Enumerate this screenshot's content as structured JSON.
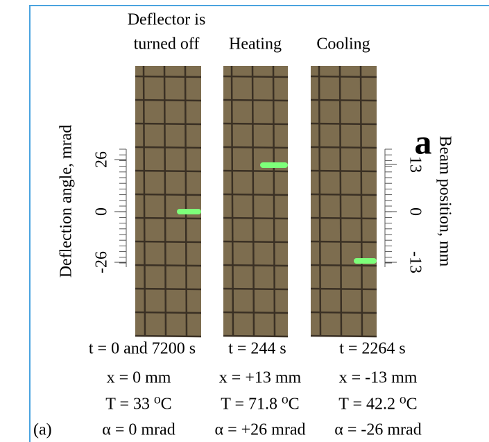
{
  "figure": {
    "panel_letter": "a",
    "caption_label": "(a)",
    "left_axis": {
      "title": "Deflection angle, mrad",
      "ticks": [
        "26",
        "0",
        "-26"
      ]
    },
    "right_axis": {
      "title": "Beam position, mm",
      "ticks": [
        "13",
        "0",
        "-13"
      ]
    },
    "panels": [
      {
        "heading": [
          "Deflector is",
          "turned off"
        ],
        "t": "t = 0 and 7200 s",
        "x": "x = 0 mm",
        "T": "T = 33 ⁰C",
        "alpha": "α = 0 mrad"
      },
      {
        "heading": [
          "Heating"
        ],
        "t": "t = 244 s",
        "x": "x = +13 mm",
        "T": "T = 71.8 ⁰C",
        "alpha": "α = +26 mrad"
      },
      {
        "heading": [
          "Cooling"
        ],
        "t": "t = 2264 s",
        "x": "x = -13 mm",
        "T": "T = 42.2 ⁰C",
        "alpha": "α = -26 mrad"
      }
    ]
  }
}
